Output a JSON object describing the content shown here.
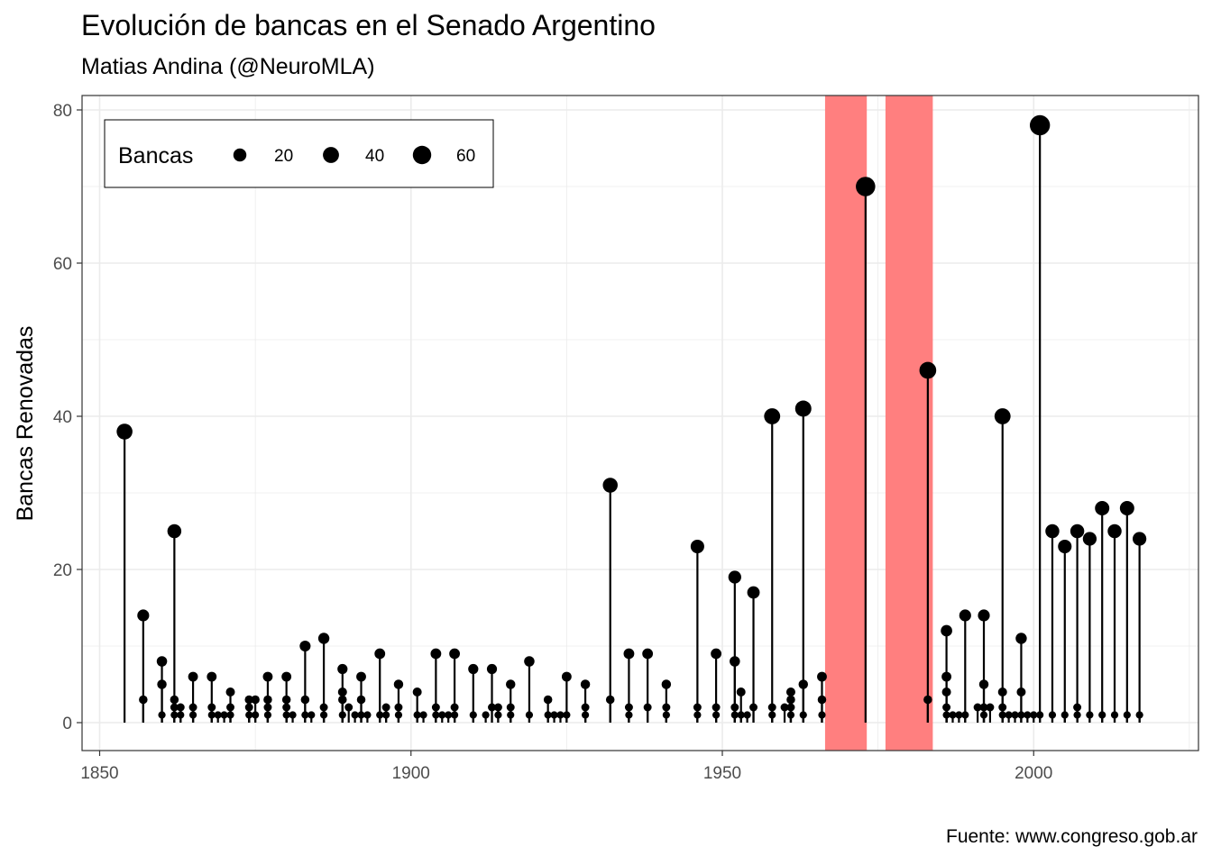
{
  "title": "Evolución de bancas en el Senado Argentino",
  "subtitle": "Matias Andina (@NeuroMLA)",
  "caption": "Fuente: www.congreso.gob.ar",
  "chart_data": {
    "type": "lollipop",
    "xlabel": "",
    "ylabel": "Bancas Renovadas",
    "xlim": [
      1850,
      2018
    ],
    "ylim": [
      0,
      80
    ],
    "xticks": [
      1850,
      1900,
      1950,
      2000
    ],
    "yticks": [
      0,
      20,
      40,
      60,
      80
    ],
    "grid": true,
    "legend": {
      "title": "Bancas",
      "placement": "top-left",
      "sizes": [
        20,
        40,
        60
      ],
      "labels": [
        "20",
        "40",
        "60"
      ]
    },
    "shaded_periods": [
      {
        "start": 1966.5,
        "end": 1973.2
      },
      {
        "start": 1976.2,
        "end": 1983.8
      }
    ],
    "highlight_color": "#ff7f7f",
    "point_color": "#000000",
    "points": [
      [
        1854,
        38
      ],
      [
        1857,
        14
      ],
      [
        1857,
        3
      ],
      [
        1860,
        8
      ],
      [
        1860,
        5
      ],
      [
        1860,
        1
      ],
      [
        1862,
        25
      ],
      [
        1862,
        3
      ],
      [
        1862,
        1
      ],
      [
        1862,
        2
      ],
      [
        1863,
        2
      ],
      [
        1863,
        1
      ],
      [
        1865,
        6
      ],
      [
        1865,
        2
      ],
      [
        1865,
        1
      ],
      [
        1868,
        6
      ],
      [
        1868,
        2
      ],
      [
        1868,
        1
      ],
      [
        1869,
        1
      ],
      [
        1870,
        1
      ],
      [
        1871,
        4
      ],
      [
        1871,
        2
      ],
      [
        1871,
        1
      ],
      [
        1874,
        3
      ],
      [
        1874,
        2
      ],
      [
        1874,
        1
      ],
      [
        1875,
        3
      ],
      [
        1875,
        1
      ],
      [
        1877,
        6
      ],
      [
        1877,
        3
      ],
      [
        1877,
        1
      ],
      [
        1877,
        2
      ],
      [
        1880,
        6
      ],
      [
        1880,
        3
      ],
      [
        1880,
        2
      ],
      [
        1880,
        1
      ],
      [
        1881,
        1
      ],
      [
        1883,
        10
      ],
      [
        1883,
        3
      ],
      [
        1883,
        1
      ],
      [
        1884,
        1
      ],
      [
        1886,
        11
      ],
      [
        1886,
        2
      ],
      [
        1886,
        1
      ],
      [
        1889,
        7
      ],
      [
        1889,
        4
      ],
      [
        1889,
        3
      ],
      [
        1889,
        1
      ],
      [
        1890,
        2
      ],
      [
        1891,
        1
      ],
      [
        1892,
        6
      ],
      [
        1892,
        3
      ],
      [
        1892,
        1
      ],
      [
        1893,
        1
      ],
      [
        1895,
        9
      ],
      [
        1895,
        1
      ],
      [
        1896,
        2
      ],
      [
        1896,
        1
      ],
      [
        1898,
        5
      ],
      [
        1898,
        2
      ],
      [
        1898,
        1
      ],
      [
        1901,
        4
      ],
      [
        1901,
        1
      ],
      [
        1902,
        1
      ],
      [
        1904,
        9
      ],
      [
        1904,
        2
      ],
      [
        1904,
        1
      ],
      [
        1905,
        1
      ],
      [
        1906,
        1
      ],
      [
        1907,
        9
      ],
      [
        1907,
        2
      ],
      [
        1907,
        1
      ],
      [
        1910,
        7
      ],
      [
        1910,
        1
      ],
      [
        1912,
        1
      ],
      [
        1913,
        7
      ],
      [
        1913,
        2
      ],
      [
        1914,
        2
      ],
      [
        1914,
        1
      ],
      [
        1916,
        5
      ],
      [
        1916,
        2
      ],
      [
        1916,
        1
      ],
      [
        1919,
        8
      ],
      [
        1919,
        1
      ],
      [
        1922,
        3
      ],
      [
        1922,
        1
      ],
      [
        1923,
        1
      ],
      [
        1924,
        1
      ],
      [
        1925,
        6
      ],
      [
        1925,
        1
      ],
      [
        1928,
        5
      ],
      [
        1928,
        2
      ],
      [
        1928,
        1
      ],
      [
        1932,
        31
      ],
      [
        1932,
        3
      ],
      [
        1935,
        9
      ],
      [
        1935,
        2
      ],
      [
        1935,
        1
      ],
      [
        1938,
        9
      ],
      [
        1938,
        2
      ],
      [
        1941,
        5
      ],
      [
        1941,
        2
      ],
      [
        1941,
        1
      ],
      [
        1946,
        23
      ],
      [
        1946,
        2
      ],
      [
        1946,
        1
      ],
      [
        1949,
        9
      ],
      [
        1949,
        2
      ],
      [
        1949,
        1
      ],
      [
        1952,
        19
      ],
      [
        1952,
        8
      ],
      [
        1952,
        2
      ],
      [
        1952,
        1
      ],
      [
        1953,
        4
      ],
      [
        1953,
        1
      ],
      [
        1954,
        1
      ],
      [
        1955,
        17
      ],
      [
        1955,
        2
      ],
      [
        1958,
        40
      ],
      [
        1958,
        2
      ],
      [
        1958,
        1
      ],
      [
        1960,
        2
      ],
      [
        1961,
        4
      ],
      [
        1961,
        3
      ],
      [
        1961,
        2
      ],
      [
        1961,
        1
      ],
      [
        1963,
        41
      ],
      [
        1963,
        5
      ],
      [
        1963,
        1
      ],
      [
        1966,
        6
      ],
      [
        1966,
        3
      ],
      [
        1966,
        1
      ],
      [
        1973,
        70
      ],
      [
        1983,
        46
      ],
      [
        1983,
        3
      ],
      [
        1986,
        12
      ],
      [
        1986,
        6
      ],
      [
        1986,
        4
      ],
      [
        1986,
        2
      ],
      [
        1986,
        1
      ],
      [
        1987,
        1
      ],
      [
        1988,
        1
      ],
      [
        1989,
        14
      ],
      [
        1989,
        1
      ],
      [
        1991,
        2
      ],
      [
        1992,
        14
      ],
      [
        1992,
        5
      ],
      [
        1992,
        2
      ],
      [
        1992,
        1
      ],
      [
        1993,
        2
      ],
      [
        1995,
        40
      ],
      [
        1995,
        4
      ],
      [
        1995,
        2
      ],
      [
        1995,
        1
      ],
      [
        1996,
        1
      ],
      [
        1997,
        1
      ],
      [
        1998,
        11
      ],
      [
        1998,
        4
      ],
      [
        1998,
        1
      ],
      [
        1999,
        1
      ],
      [
        2000,
        1
      ],
      [
        2001,
        78
      ],
      [
        2001,
        1
      ],
      [
        2003,
        25
      ],
      [
        2003,
        1
      ],
      [
        2005,
        23
      ],
      [
        2005,
        1
      ],
      [
        2007,
        25
      ],
      [
        2007,
        2
      ],
      [
        2007,
        1
      ],
      [
        2009,
        24
      ],
      [
        2009,
        1
      ],
      [
        2011,
        28
      ],
      [
        2011,
        1
      ],
      [
        2013,
        25
      ],
      [
        2013,
        1
      ],
      [
        2015,
        28
      ],
      [
        2015,
        1
      ],
      [
        2017,
        24
      ],
      [
        2017,
        1
      ]
    ]
  }
}
